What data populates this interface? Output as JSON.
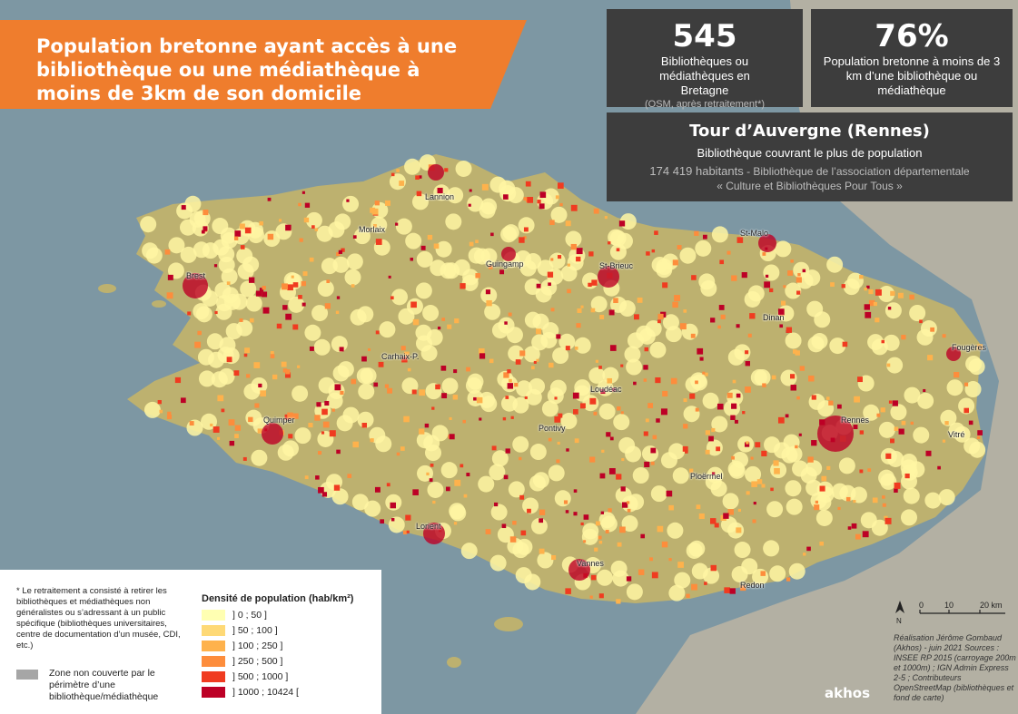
{
  "title": "Population bretonne ayant accès à une bibliothèque ou une médiathèque à moins de 3km de son domicile",
  "stats": [
    {
      "value": "545",
      "desc": "Bibliothèques ou médiathèques en Bretagne",
      "note": "(OSM, après retraitement*)"
    },
    {
      "value": "76%",
      "desc": "Population bretonne à moins de 3 km d’une bibliothèque ou médiathèque",
      "note": ""
    }
  ],
  "highlight": {
    "title": "Tour d’Auvergne (Rennes)",
    "subtitle": "Bibliothèque couvrant le plus de population",
    "population": "174 419 habitants",
    "detail": " - Bibliothèque de l’association départementale",
    "detail2": "« Culture et Bibliothèques Pour Tous »"
  },
  "cities": [
    "Lannion",
    "Morlaix",
    "St-Malo",
    "Brest",
    "Guingamp",
    "St-Brieuc",
    "Dinan",
    "Fougères",
    "Carhaix-P.",
    "Loudéac",
    "Quimper",
    "Pontivy",
    "Rennes",
    "Vitré",
    "Ploërmel",
    "Lorient",
    "Vannes",
    "Redon"
  ],
  "legend": {
    "title": "Densité de population (hab/km²)",
    "items": [
      {
        "label": "] 0 ; 50 ]",
        "color": "#ffffb2"
      },
      {
        "label": "] 50 ; 100 ]",
        "color": "#fed976"
      },
      {
        "label": "] 100 ; 250 ]",
        "color": "#feb24c"
      },
      {
        "label": "] 250 ; 500 ]",
        "color": "#fd8d3c"
      },
      {
        "label": "] 500 ; 1000 ]",
        "color": "#f03b20"
      },
      {
        "label": "] 1000 ; 10424 [",
        "color": "#bd0026"
      }
    ],
    "gray_label": "Zone non couverte par le périmètre d’une bibliothèque/médiathèque",
    "note": "* Le retraitement a consisté à retirer les bibliothèques et médiathèques non généralistes ou s’adressant à un public spécifique (bibliothèques universitaires, centre de documentation d’un musée, CDI, etc.)"
  },
  "scale": {
    "labels": [
      "0",
      "10",
      "20 km"
    ],
    "north": "N"
  },
  "credits": "Réalisation Jérôme Gombaud (Akhos) - juin 2021 Sources : INSEE RP 2015 (carroyage 200m et 1000m) ; IGN Admin Express 2-5 ; Contributeurs OpenStreetMap (bibliothèques et fond de carte)",
  "logo": "akhos",
  "colors": {
    "banner": "#ef7d2d",
    "box": "#3d3d3d",
    "sea": "#7d97a3",
    "land": "#bdb16f",
    "buffer": "#fff6a3"
  }
}
